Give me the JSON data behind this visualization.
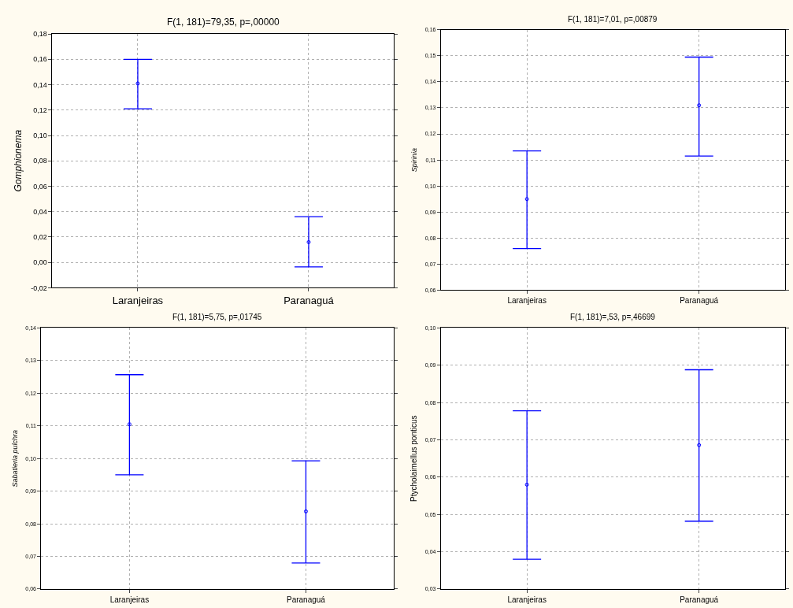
{
  "chart_data": [
    {
      "type": "scatter",
      "title": "F(1, 181)=79,35, p=,00000",
      "ylabel": "Gomphionema",
      "categories": [
        "Laranjeiras",
        "Paranaguá"
      ],
      "series": [
        {
          "color": "#0000ff",
          "values": [
            0.141,
            0.016
          ],
          "errors": [
            [
              0.121,
              0.16
            ],
            [
              -0.0035,
              0.036
            ]
          ]
        }
      ],
      "ylim": [
        -0.02,
        0.18
      ],
      "yticks": [
        {
          "value": -0.02,
          "label": "-0,02"
        },
        {
          "value": 0,
          "label": "0,00"
        },
        {
          "value": 0.02,
          "label": "0,02"
        },
        {
          "value": 0.04,
          "label": "0,04"
        },
        {
          "value": 0.06,
          "label": "0,06"
        },
        {
          "value": 0.08,
          "label": "0,08"
        },
        {
          "value": 0.1,
          "label": "0,10"
        },
        {
          "value": 0.12,
          "label": "0,12"
        },
        {
          "value": 0.14,
          "label": "0,14"
        },
        {
          "value": 0.16,
          "label": "0,16"
        },
        {
          "value": 0.18,
          "label": "0,18"
        }
      ],
      "grid": true,
      "marker": "circle"
    },
    {
      "type": "scatter",
      "title": "F(1, 181)=7,01, p=,00879",
      "ylabel": "Spirinia",
      "categories": [
        "Laranjeiras",
        "Paranaguá"
      ],
      "series": [
        {
          "color": "#0000ff",
          "values": [
            0.095,
            0.131
          ],
          "errors": [
            [
              0.076,
              0.1135
            ],
            [
              0.1115,
              0.1495
            ]
          ]
        }
      ],
      "ylim": [
        0.06,
        0.16
      ],
      "yticks": [
        {
          "value": 0.06,
          "label": "0,06"
        },
        {
          "value": 0.07,
          "label": "0,07"
        },
        {
          "value": 0.08,
          "label": "0,08"
        },
        {
          "value": 0.09,
          "label": "0,09"
        },
        {
          "value": 0.1,
          "label": "0,10"
        },
        {
          "value": 0.11,
          "label": "0,11"
        },
        {
          "value": 0.12,
          "label": "0,12"
        },
        {
          "value": 0.13,
          "label": "0,13"
        },
        {
          "value": 0.14,
          "label": "0,14"
        },
        {
          "value": 0.15,
          "label": "0,15"
        },
        {
          "value": 0.16,
          "label": "0,16"
        }
      ],
      "grid": true,
      "marker": "circle"
    },
    {
      "type": "scatter",
      "title": "F(1, 181)=5,75, p=,01745",
      "ylabel": "Sabatieria pulchra",
      "categories": [
        "Laranjeiras",
        "Paranaguá"
      ],
      "series": [
        {
          "color": "#0000ff",
          "values": [
            0.1105,
            0.0838
          ],
          "errors": [
            [
              0.095,
              0.1257
            ],
            [
              0.068,
              0.0993
            ]
          ]
        }
      ],
      "ylim": [
        0.06,
        0.14
      ],
      "yticks": [
        {
          "value": 0.06,
          "label": "0,06"
        },
        {
          "value": 0.07,
          "label": "0,07"
        },
        {
          "value": 0.08,
          "label": "0,08"
        },
        {
          "value": 0.09,
          "label": "0,09"
        },
        {
          "value": 0.1,
          "label": "0,10"
        },
        {
          "value": 0.11,
          "label": "0,11"
        },
        {
          "value": 0.12,
          "label": "0,12"
        },
        {
          "value": 0.13,
          "label": "0,13"
        },
        {
          "value": 0.14,
          "label": "0,14"
        }
      ],
      "grid": true,
      "marker": "circle"
    },
    {
      "type": "scatter",
      "title": "F(1, 181)=,53, p=,46699",
      "ylabel": "Ptycholaimellus ponticus",
      "categories": [
        "Laranjeiras",
        "Paranaguá"
      ],
      "series": [
        {
          "color": "#0000ff",
          "values": [
            0.058,
            0.0686
          ],
          "errors": [
            [
              0.038,
              0.0778
            ],
            [
              0.0482,
              0.0888
            ]
          ]
        }
      ],
      "ylim": [
        0.03,
        0.1
      ],
      "yticks": [
        {
          "value": 0.03,
          "label": "0,03"
        },
        {
          "value": 0.04,
          "label": "0,04"
        },
        {
          "value": 0.05,
          "label": "0,05"
        },
        {
          "value": 0.06,
          "label": "0,06"
        },
        {
          "value": 0.07,
          "label": "0,07"
        },
        {
          "value": 0.08,
          "label": "0,08"
        },
        {
          "value": 0.09,
          "label": "0,09"
        },
        {
          "value": 0.1,
          "label": "0,10"
        }
      ],
      "grid": true,
      "marker": "circle"
    }
  ]
}
